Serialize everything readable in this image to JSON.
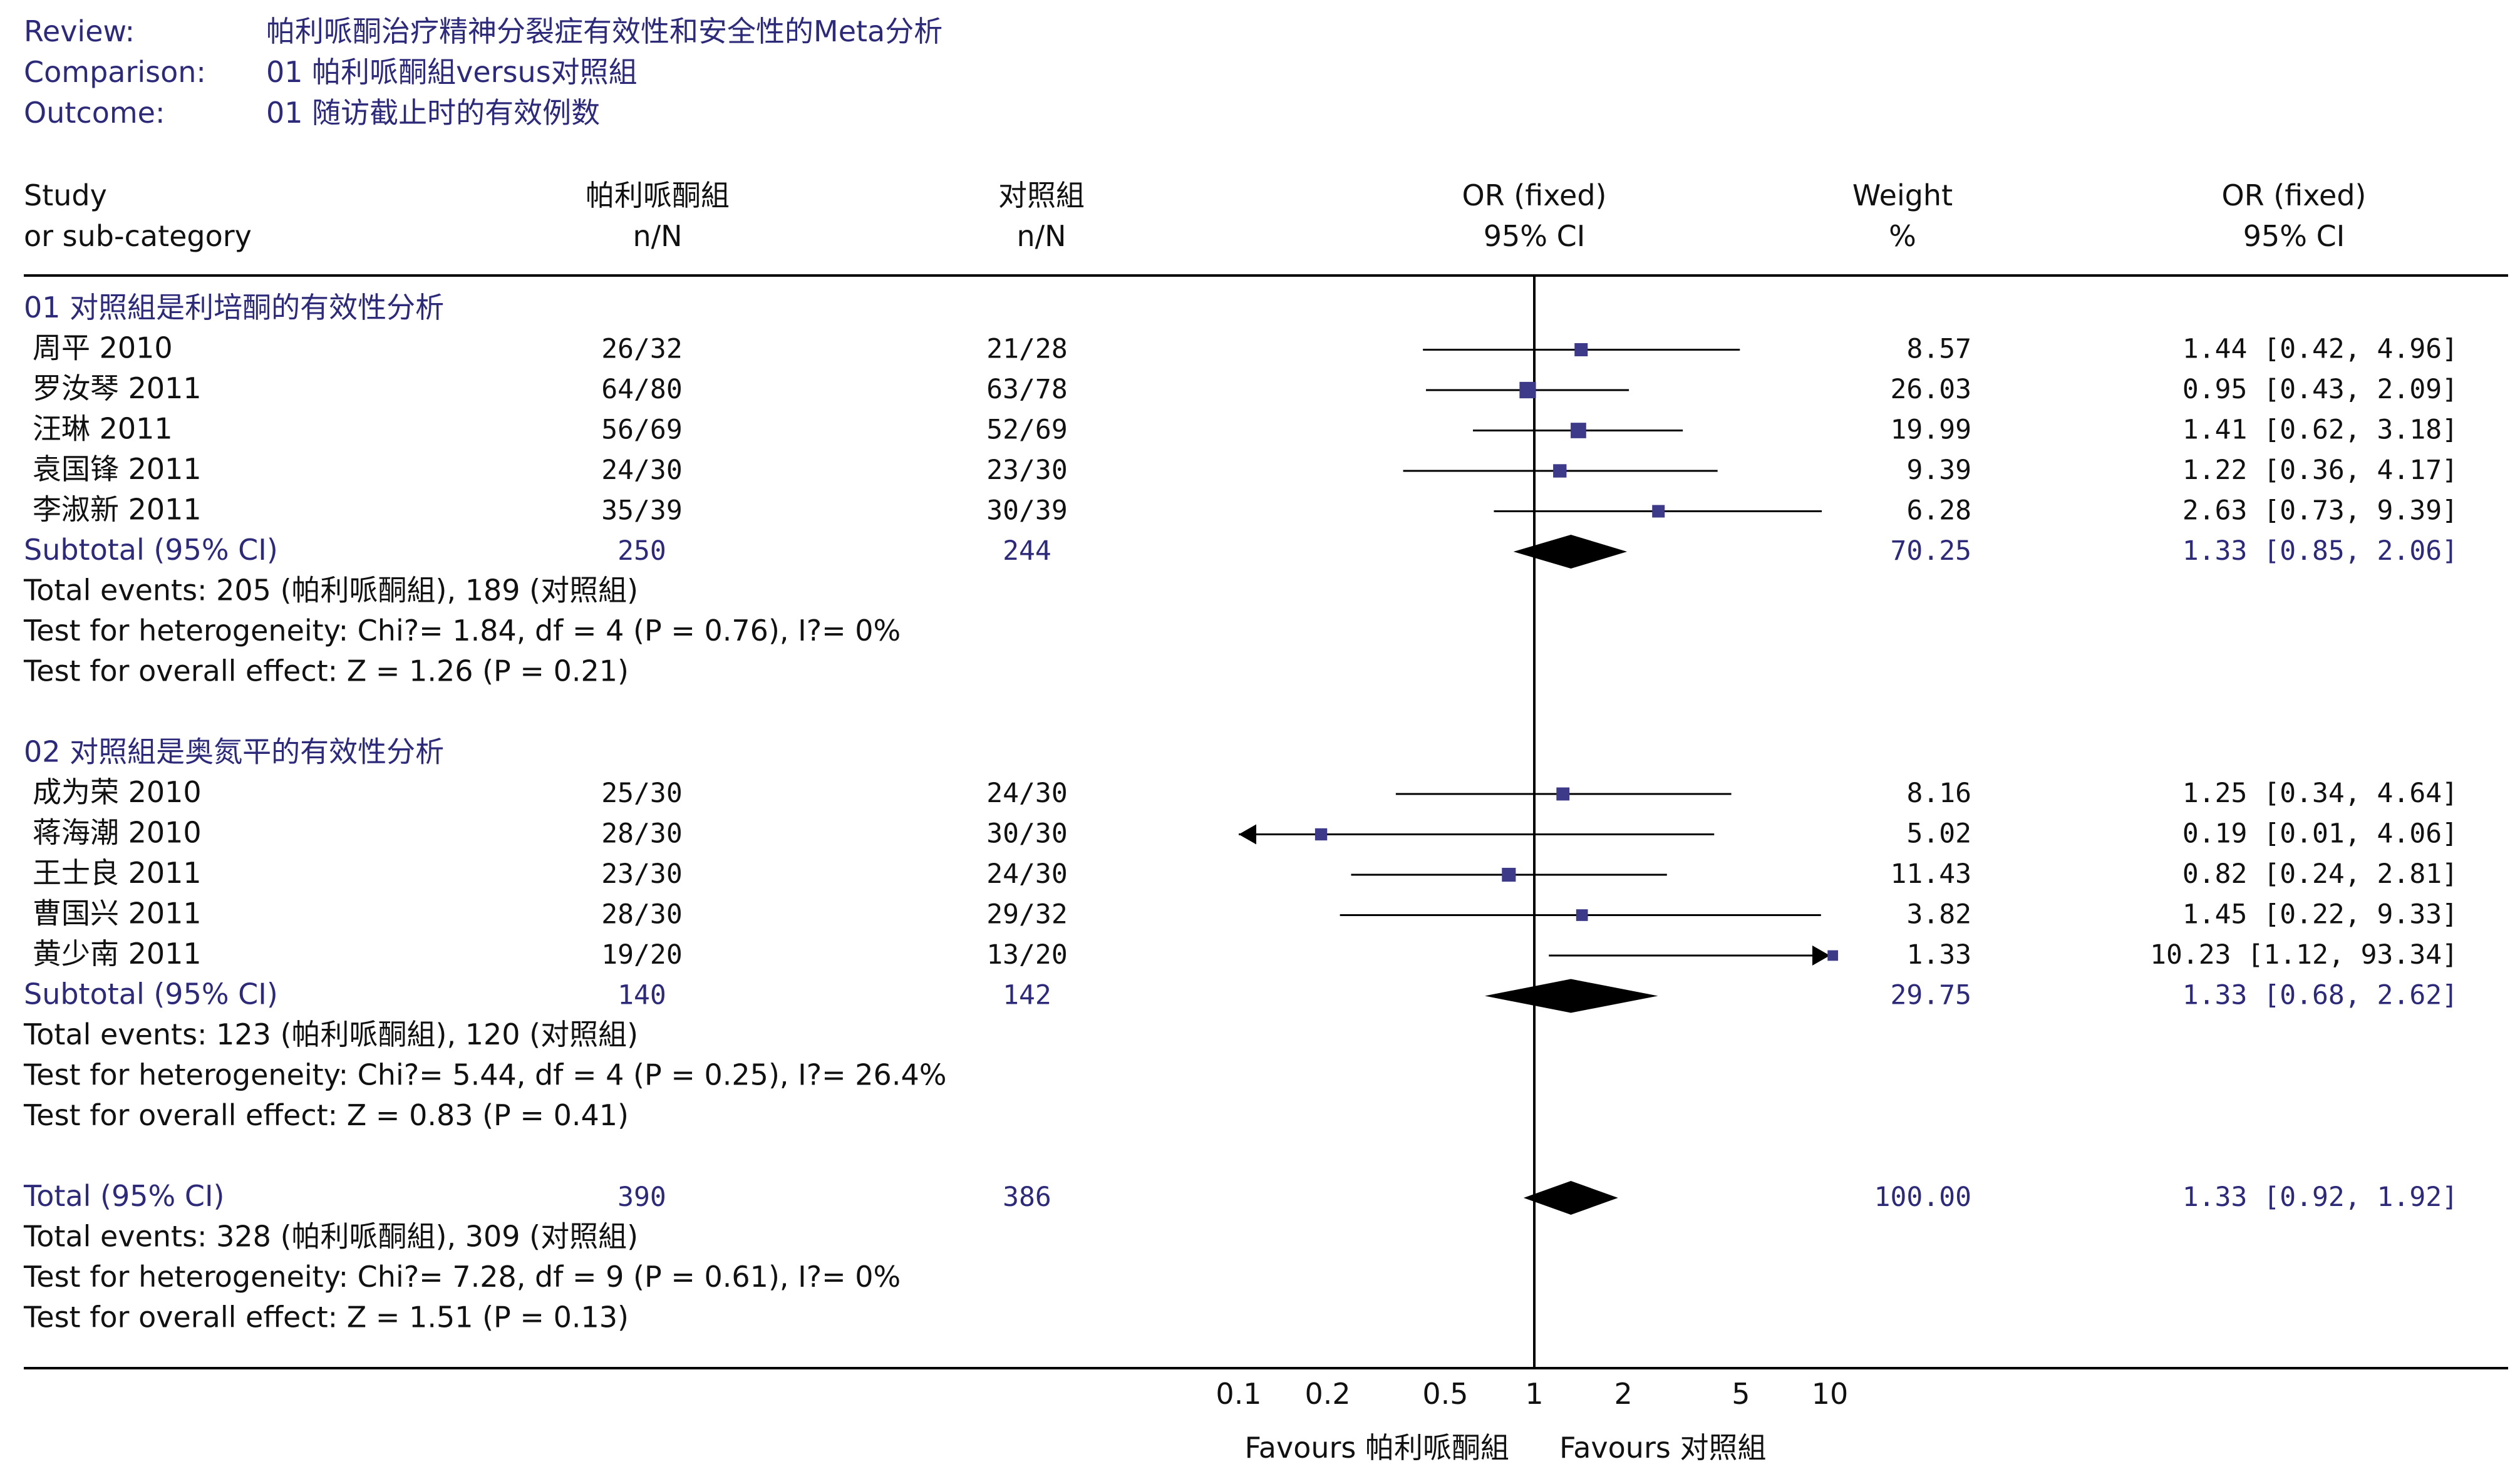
{
  "review": {
    "review_label": "Review:",
    "review_value": "帕利哌酮治疗精神分裂症有效性和安全性的Meta分析",
    "comparison_label": "Comparison:",
    "comparison_value": "01 帕利哌酮組versus对照組",
    "outcome_label": "Outcome:",
    "outcome_value": "01 随访截止时的有效例数"
  },
  "columns": {
    "study_1": "Study",
    "study_2": "or sub-category",
    "trt_1": "帕利哌酮組",
    "trt_2": "n/N",
    "ctl_1": "对照組",
    "ctl_2": "n/N",
    "or_1": "OR (fixed)",
    "or_2": "95% CI",
    "w_1": "Weight",
    "w_2": "%",
    "orv_1": "OR (fixed)",
    "orv_2": "95% CI"
  },
  "chart_data": {
    "type": "forest",
    "x_scale": "log",
    "xlim": [
      0.1,
      10
    ],
    "reference_line": 1,
    "ticks": [
      "0.1",
      "0.2",
      "0.5",
      "1",
      "2",
      "5",
      "10"
    ],
    "xlabel_left": "Favours 帕利哌酮組",
    "xlabel_right": "Favours 对照組",
    "groups": [
      {
        "title": "01 对照組是利培酮的有效性分析",
        "studies": [
          {
            "name": "周平 2010",
            "trt": "26/32",
            "ctl": "21/28",
            "weight": "8.57",
            "or_text": "1.44 [0.42, 4.96]",
            "or": 1.44,
            "lo": 0.42,
            "hi": 4.96,
            "w": 8.57
          },
          {
            "name": "罗汝琴 2011",
            "trt": "64/80",
            "ctl": "63/78",
            "weight": "26.03",
            "or_text": "0.95 [0.43, 2.09]",
            "or": 0.95,
            "lo": 0.43,
            "hi": 2.09,
            "w": 26.03
          },
          {
            "name": "汪琳 2011",
            "trt": "56/69",
            "ctl": "52/69",
            "weight": "19.99",
            "or_text": "1.41 [0.62, 3.18]",
            "or": 1.41,
            "lo": 0.62,
            "hi": 3.18,
            "w": 19.99
          },
          {
            "name": "袁国锋 2011",
            "trt": "24/30",
            "ctl": "23/30",
            "weight": "9.39",
            "or_text": "1.22 [0.36, 4.17]",
            "or": 1.22,
            "lo": 0.36,
            "hi": 4.17,
            "w": 9.39
          },
          {
            "name": "李淑新 2011",
            "trt": "35/39",
            "ctl": "30/39",
            "weight": "6.28",
            "or_text": "2.63 [0.73, 9.39]",
            "or": 2.63,
            "lo": 0.73,
            "hi": 9.39,
            "w": 6.28
          }
        ],
        "subtotal": {
          "label": "Subtotal (95% CI)",
          "trt": "250",
          "ctl": "244",
          "weight": "70.25",
          "or_text": "1.33 [0.85, 2.06]",
          "or": 1.33,
          "lo": 0.85,
          "hi": 2.06
        },
        "stats": [
          "Total events: 205 (帕利哌酮組), 189 (对照組)",
          "Test for heterogeneity: Chi?= 1.84, df = 4 (P = 0.76), I?= 0%",
          "Test for overall effect: Z = 1.26 (P = 0.21)"
        ]
      },
      {
        "title": "02 对照組是奥氮平的有效性分析",
        "studies": [
          {
            "name": "成为荣 2010",
            "trt": "25/30",
            "ctl": "24/30",
            "weight": "8.16",
            "or_text": "1.25 [0.34, 4.64]",
            "or": 1.25,
            "lo": 0.34,
            "hi": 4.64,
            "w": 8.16
          },
          {
            "name": "蒋海潮 2010",
            "trt": "28/30",
            "ctl": "30/30",
            "weight": "5.02",
            "or_text": "0.19 [0.01, 4.06]",
            "or": 0.19,
            "lo": 0.01,
            "hi": 4.06,
            "w": 5.02
          },
          {
            "name": "王士良 2011",
            "trt": "23/30",
            "ctl": "24/30",
            "weight": "11.43",
            "or_text": "0.82 [0.24, 2.81]",
            "or": 0.82,
            "lo": 0.24,
            "hi": 2.81,
            "w": 11.43
          },
          {
            "name": "曹国兴 2011",
            "trt": "28/30",
            "ctl": "29/32",
            "weight": "3.82",
            "or_text": "1.45 [0.22, 9.33]",
            "or": 1.45,
            "lo": 0.22,
            "hi": 9.33,
            "w": 3.82
          },
          {
            "name": "黄少南 2011",
            "trt": "19/20",
            "ctl": "13/20",
            "weight": "1.33",
            "or_text": "10.23 [1.12, 93.34]",
            "or": 10.23,
            "lo": 1.12,
            "hi": 93.34,
            "w": 1.33
          }
        ],
        "subtotal": {
          "label": "Subtotal (95% CI)",
          "trt": "140",
          "ctl": "142",
          "weight": "29.75",
          "or_text": "1.33 [0.68, 2.62]",
          "or": 1.33,
          "lo": 0.68,
          "hi": 2.62
        },
        "stats": [
          "Total events: 123 (帕利哌酮組), 120 (对照組)",
          "Test for heterogeneity: Chi?= 5.44, df = 4 (P = 0.25), I?= 26.4%",
          "Test for overall effect: Z = 0.83 (P = 0.41)"
        ]
      }
    ],
    "total": {
      "label": "Total (95% CI)",
      "trt": "390",
      "ctl": "386",
      "weight": "100.00",
      "or_text": "1.33 [0.92, 1.92]",
      "or": 1.33,
      "lo": 0.92,
      "hi": 1.92
    },
    "total_stats": [
      "Total events: 328 (帕利哌酮組), 309 (对照組)",
      "Test for heterogeneity: Chi?= 7.28, df = 9 (P = 0.61), I?= 0%",
      "Test for overall effect: Z = 1.51 (P = 0.13)"
    ]
  }
}
